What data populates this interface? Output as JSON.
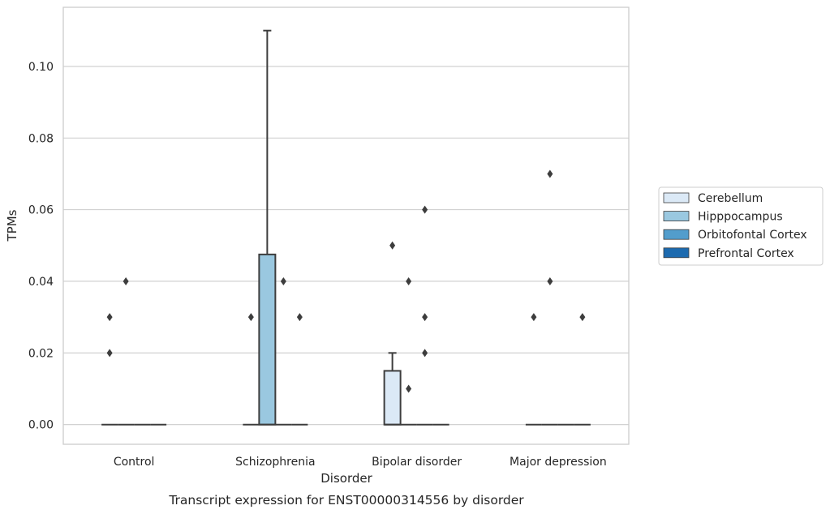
{
  "chart_data": {
    "type": "box",
    "title": "",
    "caption": "Transcript expression for ENST00000314556 by disorder",
    "xlabel": "Disorder",
    "ylabel": "TPMs",
    "ylim": [
      -0.0055,
      0.1165
    ],
    "yticks": [
      0.0,
      0.02,
      0.04,
      0.06,
      0.08,
      0.1
    ],
    "ytick_labels": [
      "0.00",
      "0.02",
      "0.04",
      "0.06",
      "0.08",
      "0.10"
    ],
    "grid": "horizontal",
    "legend_position": "right",
    "categories": [
      "Control",
      "Schizophrenia",
      "Bipolar disorder",
      "Major depression"
    ],
    "series": [
      {
        "name": "Cerebellum",
        "color": "#dbe9f6",
        "boxes": [
          {
            "q1": 0,
            "median": 0,
            "q3": 0,
            "whislo": 0,
            "whishi": 0,
            "fliers": [
              0.03,
              0.02
            ]
          },
          {
            "q1": 0,
            "median": 0,
            "q3": 0,
            "whislo": 0,
            "whishi": 0,
            "fliers": [
              0.03
            ]
          },
          {
            "q1": 0,
            "median": 0,
            "q3": 0.015,
            "whislo": 0,
            "whishi": 0.02,
            "fliers": [
              0.05
            ]
          },
          {
            "q1": 0,
            "median": 0,
            "q3": 0,
            "whislo": 0,
            "whishi": 0,
            "fliers": [
              0.03
            ]
          }
        ]
      },
      {
        "name": "Hipppocampus",
        "color": "#9ac8e0",
        "boxes": [
          {
            "q1": 0,
            "median": 0,
            "q3": 0,
            "whislo": 0,
            "whishi": 0,
            "fliers": [
              0.04
            ]
          },
          {
            "q1": 0,
            "median": 0,
            "q3": 0.0475,
            "whislo": 0,
            "whishi": 0.11,
            "fliers": []
          },
          {
            "q1": 0,
            "median": 0,
            "q3": 0,
            "whislo": 0,
            "whishi": 0,
            "fliers": [
              0.04,
              0.01
            ]
          },
          {
            "q1": 0,
            "median": 0,
            "q3": 0,
            "whislo": 0,
            "whishi": 0,
            "fliers": [
              0.07,
              0.04
            ]
          }
        ]
      },
      {
        "name": "Orbitofontal Cortex",
        "color": "#529dcc",
        "boxes": [
          {
            "q1": 0,
            "median": 0,
            "q3": 0,
            "whislo": 0,
            "whishi": 0,
            "fliers": []
          },
          {
            "q1": 0,
            "median": 0,
            "q3": 0,
            "whislo": 0,
            "whishi": 0,
            "fliers": [
              0.04
            ]
          },
          {
            "q1": 0,
            "median": 0,
            "q3": 0,
            "whislo": 0,
            "whishi": 0,
            "fliers": [
              0.06,
              0.03,
              0.02
            ]
          },
          {
            "q1": 0,
            "median": 0,
            "q3": 0,
            "whislo": 0,
            "whishi": 0,
            "fliers": []
          }
        ]
      },
      {
        "name": "Prefrontal Cortex",
        "color": "#1c6aaf",
        "boxes": [
          {
            "q1": 0,
            "median": 0,
            "q3": 0,
            "whislo": 0,
            "whishi": 0,
            "fliers": []
          },
          {
            "q1": 0,
            "median": 0,
            "q3": 0,
            "whislo": 0,
            "whishi": 0,
            "fliers": [
              0.03
            ]
          },
          {
            "q1": 0,
            "median": 0,
            "q3": 0,
            "whislo": 0,
            "whishi": 0,
            "fliers": []
          },
          {
            "q1": 0,
            "median": 0,
            "q3": 0,
            "whislo": 0,
            "whishi": 0,
            "fliers": [
              0.03
            ]
          }
        ]
      }
    ],
    "colors": {
      "grid": "#cccccc",
      "frame": "#cccccc",
      "box_edge": "#3d3d3d",
      "flier": "#3d3d3d"
    }
  }
}
